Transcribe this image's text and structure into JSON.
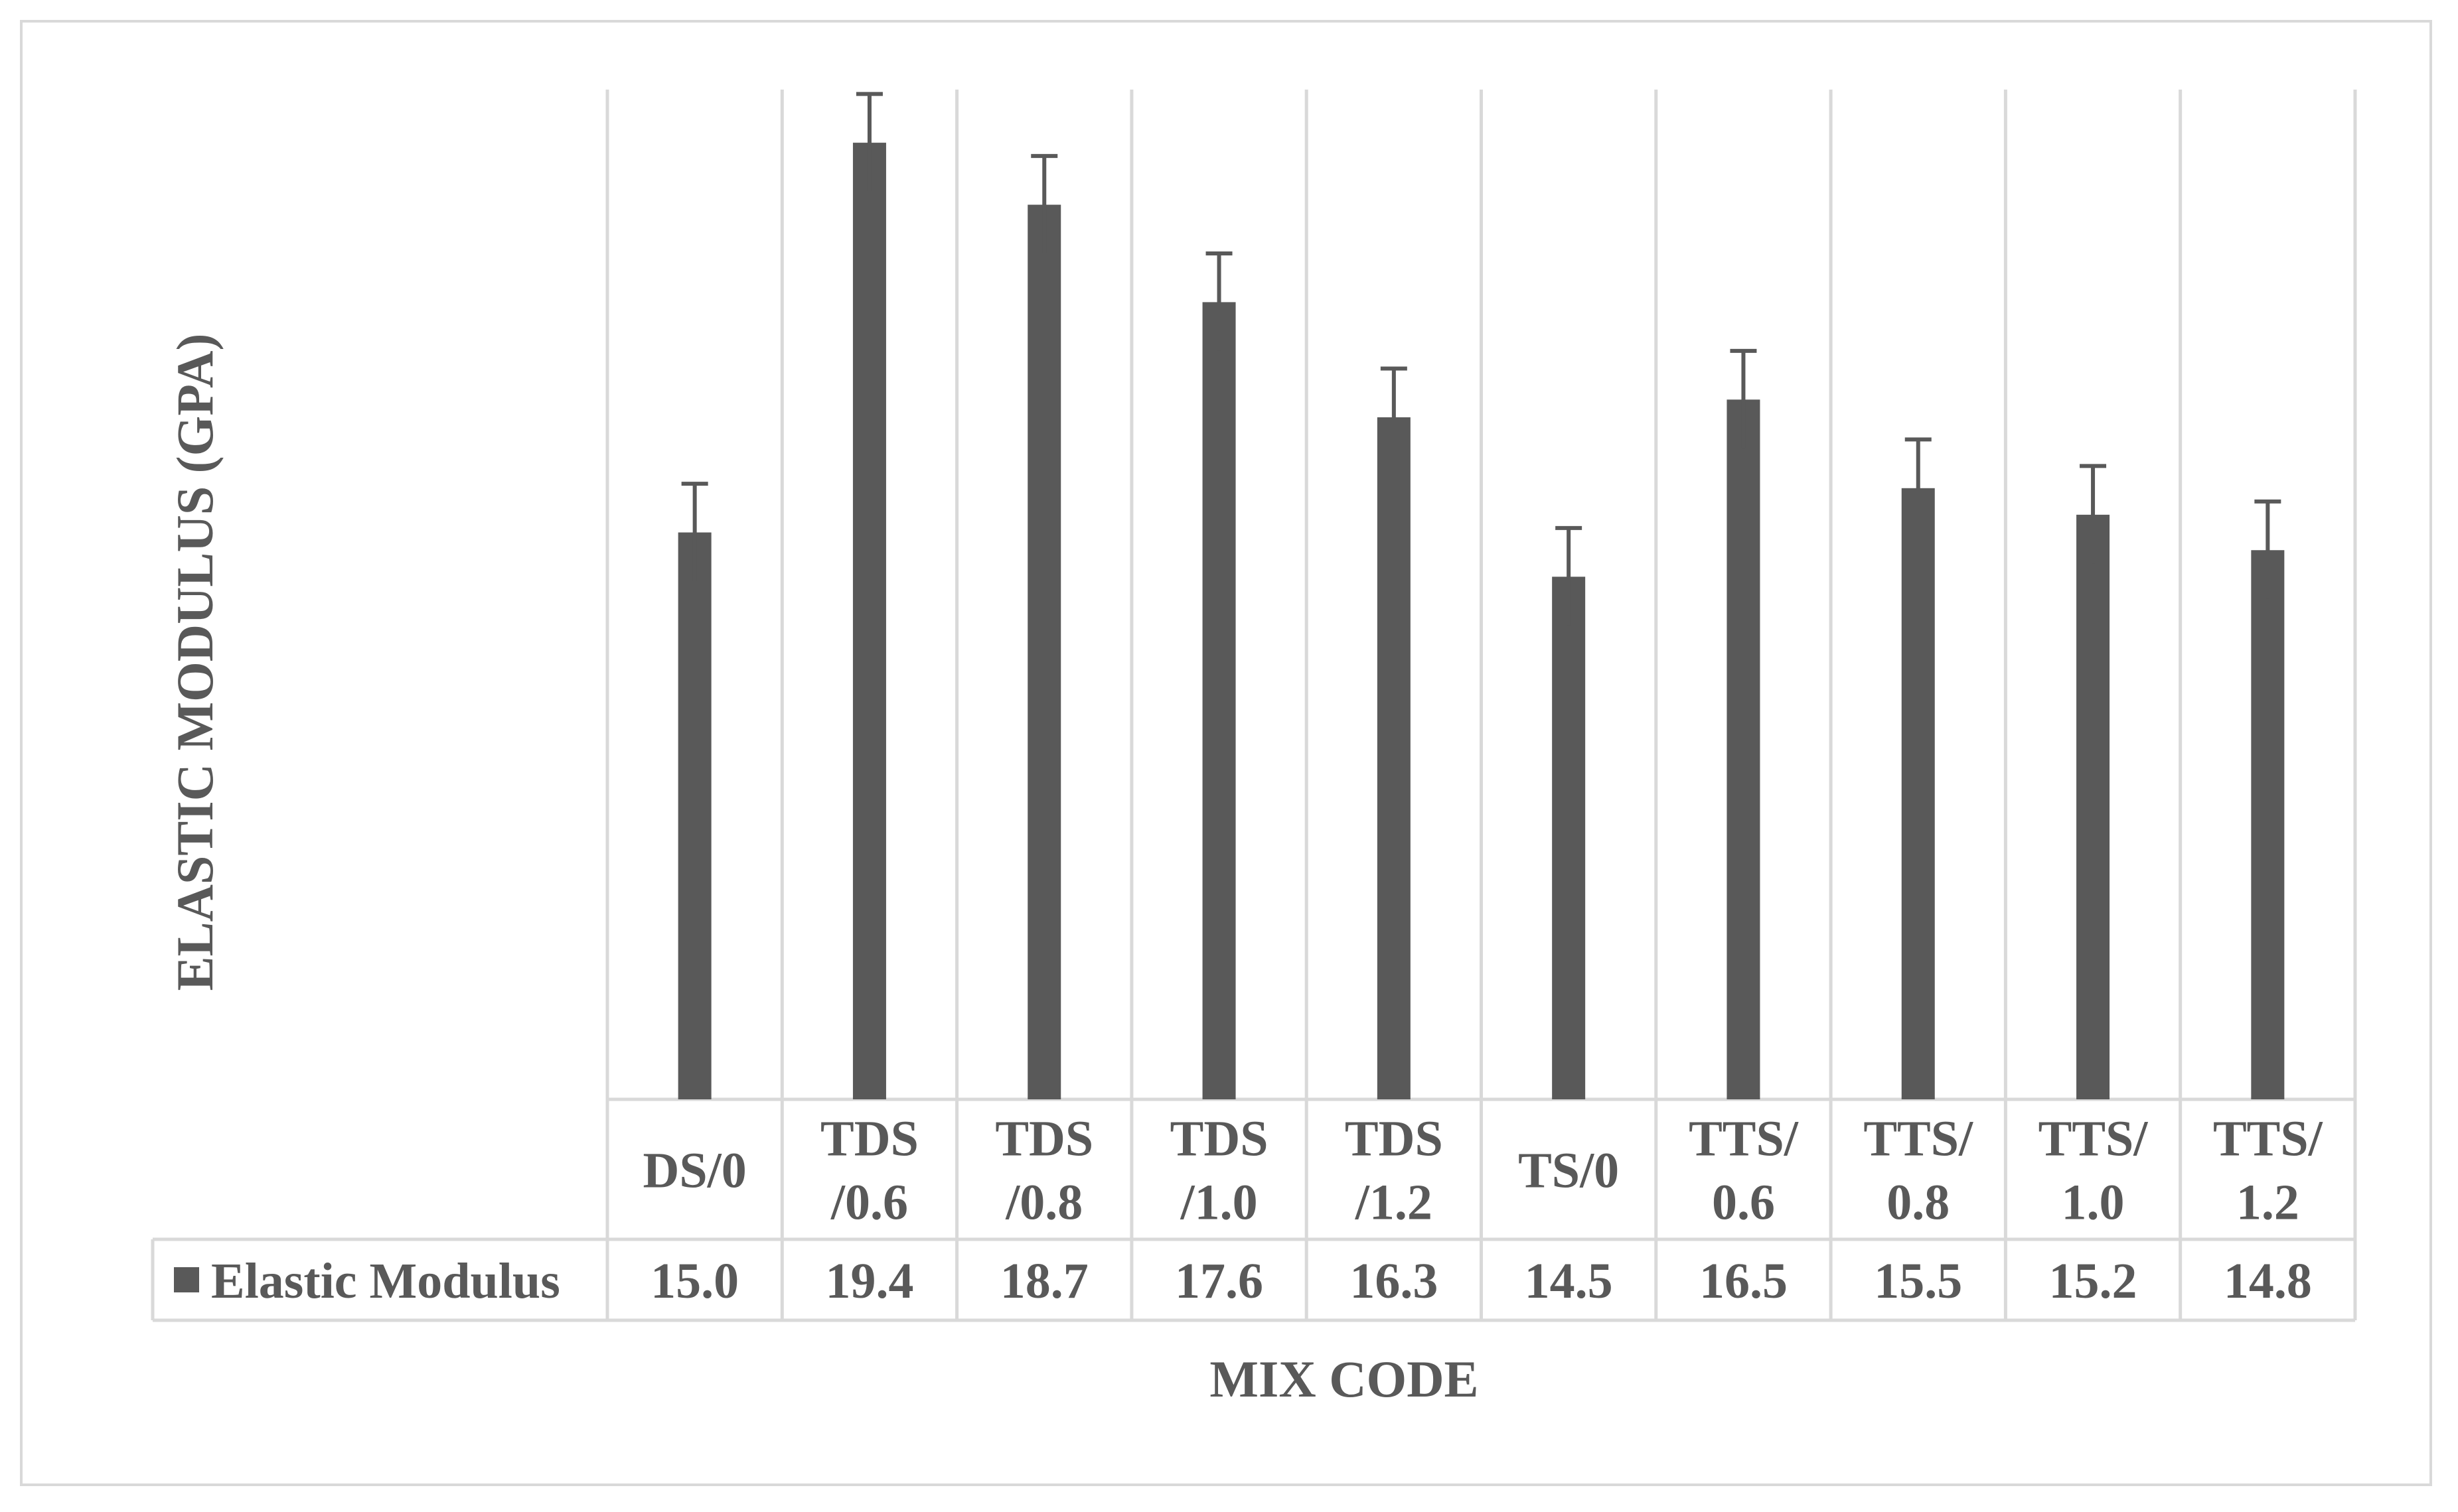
{
  "chart_data": {
    "type": "bar",
    "title": "",
    "xlabel": "MIX CODE",
    "ylabel": "ELASTIC MODULUS (GPA)",
    "categories": [
      [
        "DS/0"
      ],
      [
        "TDS",
        "/0.6"
      ],
      [
        "TDS",
        "/0.8"
      ],
      [
        "TDS",
        "/1.0"
      ],
      [
        "TDS",
        "/1.2"
      ],
      [
        "TS/0"
      ],
      [
        "TTS/",
        "0.6"
      ],
      [
        "TTS/",
        "0.8"
      ],
      [
        "TTS/",
        "1.0"
      ],
      [
        "TTS/",
        "1.2"
      ]
    ],
    "series": [
      {
        "name": "Elastic Modulus",
        "values": [
          15.0,
          19.4,
          18.7,
          17.6,
          16.3,
          14.5,
          16.5,
          15.5,
          15.2,
          14.8
        ],
        "value_labels": [
          "15.0",
          "19.4",
          "18.7",
          "17.6",
          "16.3",
          "14.5",
          "16.5",
          "15.5",
          "15.2",
          "14.8"
        ],
        "error": 0.55,
        "color": "#595959"
      }
    ],
    "ylim": [
      8.6,
      20
    ],
    "grid": true,
    "legend": "data-table-key"
  }
}
